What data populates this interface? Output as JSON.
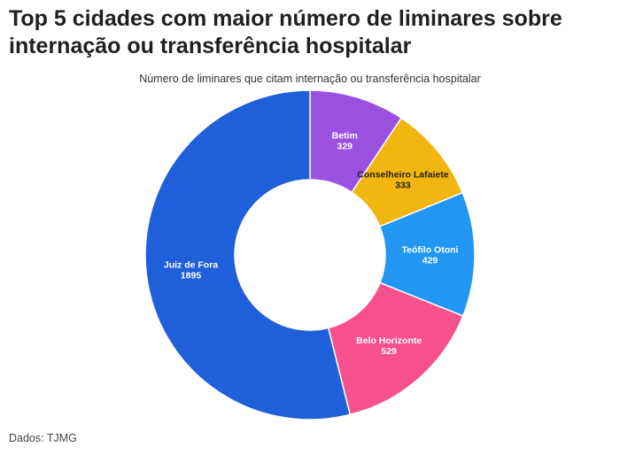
{
  "title": "Top 5 cidades com maior número de liminares sobre internação ou transferência hospitalar",
  "source": "Dados: TJMG",
  "chart_data": {
    "type": "pie",
    "donut": true,
    "subtitle": "Número de liminares que citam internação ou transferência hospitalar",
    "categories": [
      "Betim",
      "Conselheiro Lafaiete",
      "Teófilo Otoni",
      "Belo Horizonte",
      "Juiz de Fora"
    ],
    "values": [
      329,
      333,
      429,
      529,
      1895
    ],
    "colors": [
      "#9b51e0",
      "#f2b611",
      "#2196f3",
      "#f6508d",
      "#1f5fd9"
    ],
    "label_colors": [
      "#ffffff",
      "#222222",
      "#ffffff",
      "#ffffff",
      "#ffffff"
    ]
  }
}
